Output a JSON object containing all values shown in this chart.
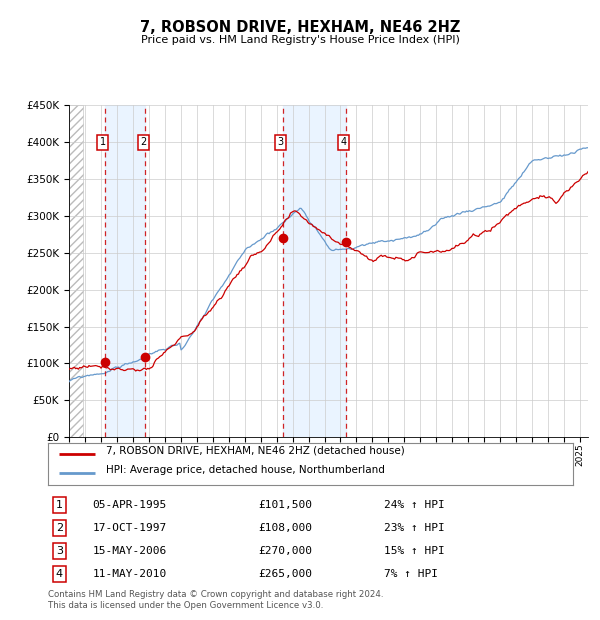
{
  "title": "7, ROBSON DRIVE, HEXHAM, NE46 2HZ",
  "subtitle": "Price paid vs. HM Land Registry's House Price Index (HPI)",
  "footer": "Contains HM Land Registry data © Crown copyright and database right 2024.\nThis data is licensed under the Open Government Licence v3.0.",
  "legend_red": "7, ROBSON DRIVE, HEXHAM, NE46 2HZ (detached house)",
  "legend_blue": "HPI: Average price, detached house, Northumberland",
  "transactions": [
    {
      "num": 1,
      "date": "05-APR-1995",
      "price": 101500,
      "pct": "24%",
      "dir": "↑",
      "year_x": 1995.27
    },
    {
      "num": 2,
      "date": "17-OCT-1997",
      "price": 108000,
      "pct": "23%",
      "dir": "↑",
      "year_x": 1997.79
    },
    {
      "num": 3,
      "date": "15-MAY-2006",
      "price": 270000,
      "pct": "15%",
      "dir": "↑",
      "year_x": 2006.37
    },
    {
      "num": 4,
      "date": "11-MAY-2010",
      "price": 265000,
      "pct": "7%",
      "dir": "↑",
      "year_x": 2010.37
    }
  ],
  "ylim": [
    0,
    450000
  ],
  "xlim_start": 1993.0,
  "xlim_end": 2025.5,
  "yticks": [
    0,
    50000,
    100000,
    150000,
    200000,
    250000,
    300000,
    350000,
    400000,
    450000
  ],
  "ytick_labels": [
    "£0",
    "£50K",
    "£100K",
    "£150K",
    "£200K",
    "£250K",
    "£300K",
    "£350K",
    "£400K",
    "£450K"
  ],
  "background_color": "#ffffff",
  "plot_bg_color": "#ffffff",
  "grid_color": "#cccccc",
  "red_line_color": "#cc0000",
  "blue_line_color": "#6699cc",
  "shade_color": "#ddeeff",
  "dashed_color": "#cc0000",
  "label_box_color": "#cc0000"
}
